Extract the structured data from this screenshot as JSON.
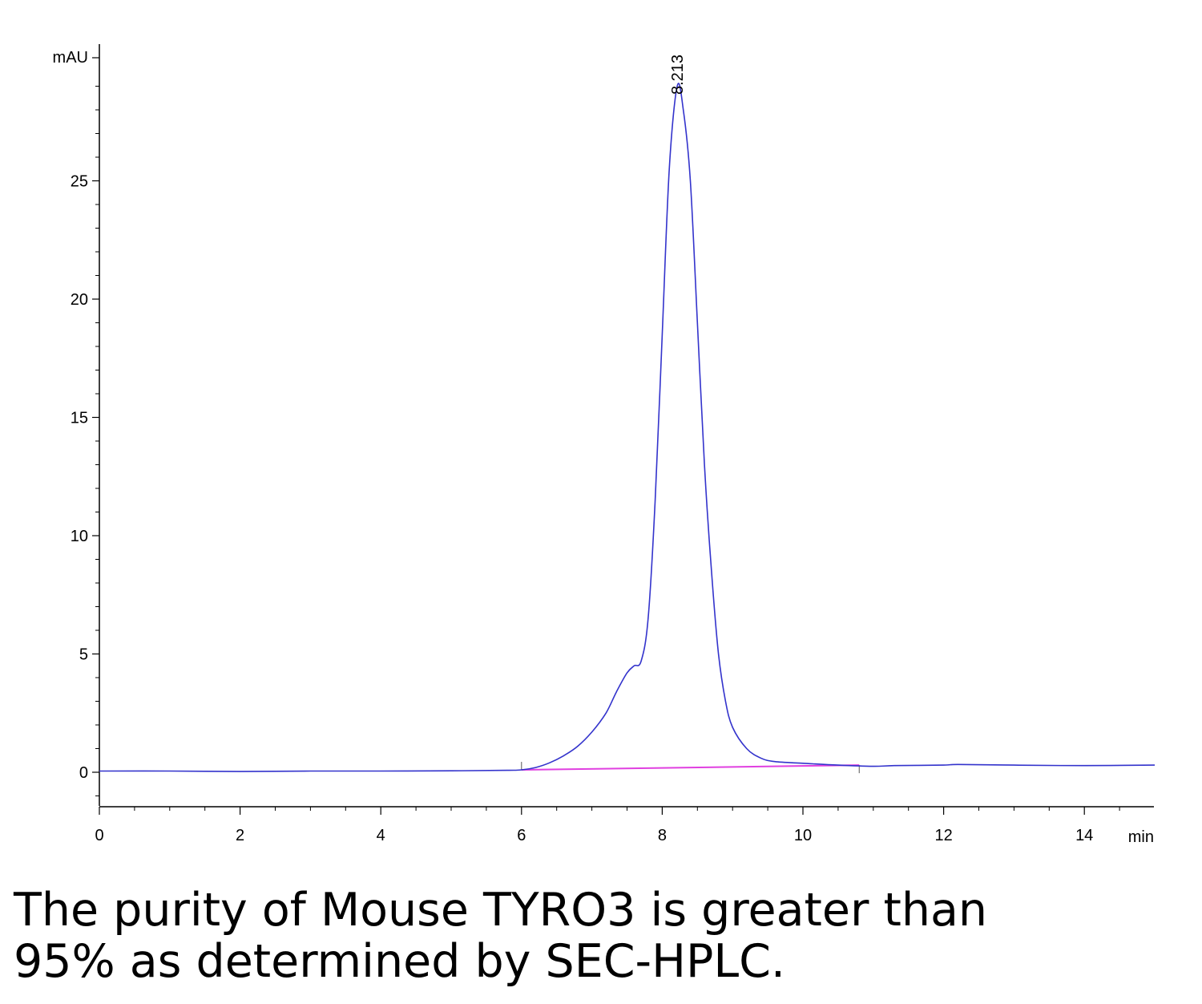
{
  "chart_data": {
    "type": "line",
    "ylabel": "mAU",
    "xlabel": "min",
    "xlim": [
      0,
      15
    ],
    "ylim": [
      -2.5,
      30.5
    ],
    "x_ticks": [
      "0",
      "2",
      "4",
      "6",
      "8",
      "10",
      "12",
      "14"
    ],
    "x_tick_values": [
      0,
      2,
      4,
      6,
      8,
      10,
      12,
      14
    ],
    "y_ticks": [
      "0",
      "5",
      "10",
      "15",
      "20",
      "25"
    ],
    "y_tick_values": [
      0,
      5,
      10,
      15,
      20,
      25
    ],
    "peak_label": {
      "text": "8.213",
      "x": 8.213,
      "y": 29.0
    },
    "baseline_segment": {
      "x": [
        6.0,
        10.8
      ],
      "y": [
        0.1,
        0.3
      ]
    },
    "colors": {
      "trace": "#3333cc",
      "baseline": "#e040e0",
      "axis": "#000000"
    },
    "series": [
      {
        "points": [
          [
            0.0,
            0.05
          ],
          [
            1.0,
            0.05
          ],
          [
            2.0,
            0.03
          ],
          [
            3.0,
            0.05
          ],
          [
            4.0,
            0.05
          ],
          [
            5.0,
            0.06
          ],
          [
            5.8,
            0.08
          ],
          [
            6.0,
            0.1
          ],
          [
            6.2,
            0.2
          ],
          [
            6.4,
            0.4
          ],
          [
            6.6,
            0.7
          ],
          [
            6.8,
            1.1
          ],
          [
            7.0,
            1.7
          ],
          [
            7.2,
            2.5
          ],
          [
            7.35,
            3.4
          ],
          [
            7.5,
            4.2
          ],
          [
            7.6,
            4.5
          ],
          [
            7.7,
            4.7
          ],
          [
            7.8,
            6.5
          ],
          [
            7.9,
            11.5
          ],
          [
            8.0,
            18.5
          ],
          [
            8.1,
            25.5
          ],
          [
            8.213,
            29.0
          ],
          [
            8.3,
            28.0
          ],
          [
            8.4,
            25.0
          ],
          [
            8.5,
            19.0
          ],
          [
            8.6,
            13.0
          ],
          [
            8.7,
            8.5
          ],
          [
            8.8,
            5.0
          ],
          [
            8.9,
            3.0
          ],
          [
            9.0,
            1.9
          ],
          [
            9.2,
            1.0
          ],
          [
            9.4,
            0.6
          ],
          [
            9.6,
            0.45
          ],
          [
            10.0,
            0.38
          ],
          [
            10.5,
            0.3
          ],
          [
            11.0,
            0.25
          ],
          [
            11.3,
            0.28
          ],
          [
            12.0,
            0.3
          ],
          [
            12.2,
            0.33
          ],
          [
            13.0,
            0.3
          ],
          [
            14.0,
            0.28
          ],
          [
            15.0,
            0.3
          ]
        ]
      }
    ]
  },
  "caption": {
    "line1": "The purity of Mouse TYRO3 is greater than",
    "line2": "95% as determined by SEC-HPLC."
  }
}
